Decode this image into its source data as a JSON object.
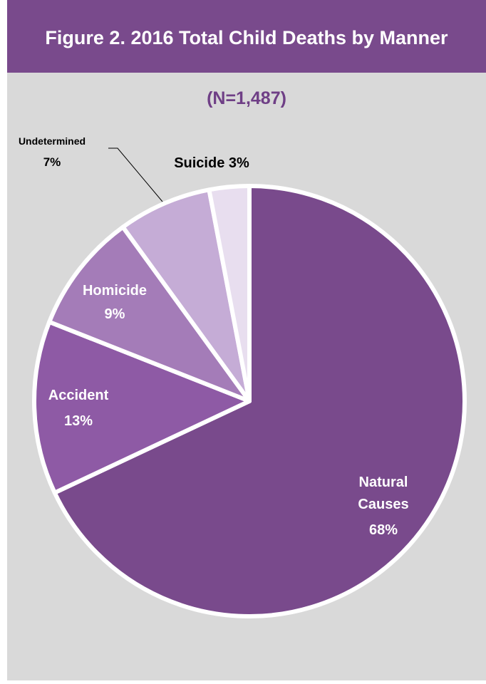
{
  "header": {
    "title": "Figure 2. 2016 Total Child Deaths by Manner"
  },
  "chart_data": {
    "type": "pie",
    "title": "Figure 2. 2016 Total Child Deaths by Manner",
    "subtitle": "(N=1,487)",
    "slices": [
      {
        "label": "Natural Causes",
        "percent_label": "68%",
        "value": 68,
        "color": "#794a8c"
      },
      {
        "label": "Accident",
        "percent_label": "13%",
        "value": 13,
        "color": "#8e5aa5"
      },
      {
        "label": "Homicide",
        "percent_label": "9%",
        "value": 9,
        "color": "#a47cb8"
      },
      {
        "label": "Undetermined",
        "percent_label": "7%",
        "value": 7,
        "color": "#c5acd6"
      },
      {
        "label": "Suicide",
        "percent_label": "3%",
        "value": 3,
        "color": "#e8deef"
      }
    ],
    "data_labels": {
      "natural": [
        "Natural",
        "Causes",
        "68%"
      ],
      "accident": [
        "Accident",
        "13%"
      ],
      "homicide": [
        "Homicide",
        "9%"
      ],
      "undetermined": [
        "Undetermined",
        "7%"
      ],
      "suicide": "Suicide 3%"
    },
    "start": "12 o'clock",
    "direction": "clockwise"
  }
}
